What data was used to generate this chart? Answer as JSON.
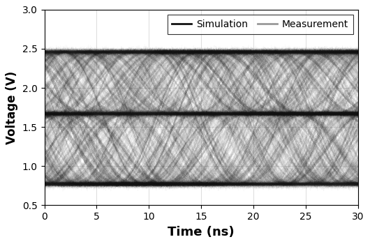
{
  "xlabel": "Time (ns)",
  "ylabel": "Voltage (V)",
  "xlim": [
    0,
    30
  ],
  "ylim": [
    0.5,
    3.0
  ],
  "xticks": [
    0,
    5,
    10,
    15,
    20,
    25,
    30
  ],
  "yticks": [
    0.5,
    1.0,
    1.5,
    2.0,
    2.5,
    3.0
  ],
  "sim_color": "#111111",
  "meas_color": "#999999",
  "period_ns": 7.5,
  "v_high": 2.46,
  "v_low": 0.77,
  "v_mid": 1.67,
  "legend_sim_label": "Simulation",
  "legend_meas_label": "Measurement",
  "xlabel_fontsize": 13,
  "ylabel_fontsize": 12,
  "tick_fontsize": 10,
  "legend_fontsize": 10
}
